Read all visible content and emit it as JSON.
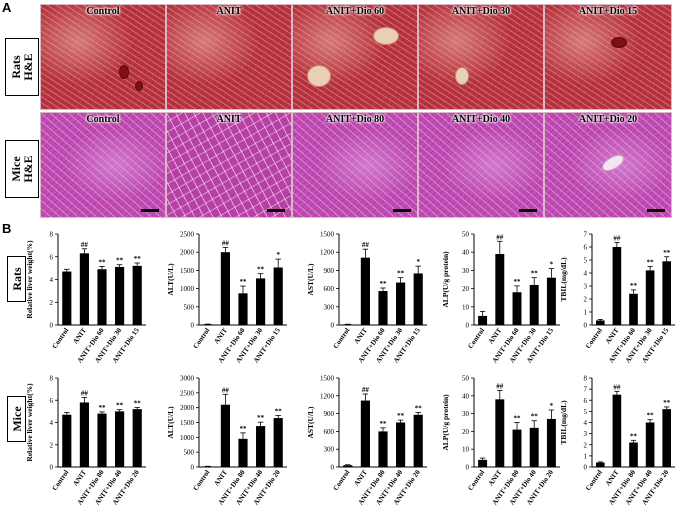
{
  "panels": {
    "a": "A",
    "b": "B"
  },
  "species": {
    "rats": {
      "name": "Rats",
      "stain": "H&E"
    },
    "mice": {
      "name": "Mice",
      "stain": "H&E"
    }
  },
  "micrographs": {
    "rats": [
      "Control",
      "ANIT",
      "ANIT+Dio 60",
      "ANIT+Dio 30",
      "ANIT+Dio 15"
    ],
    "mice": [
      "Control",
      "ANIT",
      "ANIT+Dio 80",
      "ANIT+Dio 40",
      "ANIT+Dio 20"
    ]
  },
  "chart_data": [
    {
      "type": "bar",
      "species": "Rats",
      "ylabel": "Relative liver weight(%)",
      "ylim": [
        0,
        8
      ],
      "yticks": [
        0,
        2,
        4,
        6,
        8
      ],
      "categories": [
        "Control",
        "ANIT",
        "ANIT+Dio 60",
        "ANIT+Dio 30",
        "ANIT+Dio 15"
      ],
      "values": [
        4.7,
        6.3,
        4.9,
        5.1,
        5.2
      ],
      "errors": [
        0.2,
        0.4,
        0.25,
        0.2,
        0.25
      ],
      "marks": [
        "",
        "##",
        "**",
        "**",
        "**"
      ]
    },
    {
      "type": "bar",
      "species": "Rats",
      "ylabel": "ALT(U/L)",
      "ylim": [
        0,
        2500
      ],
      "yticks": [
        0,
        500,
        1000,
        1500,
        2000,
        2500
      ],
      "categories": [
        "Control",
        "ANIT",
        "ANIT+Dio 60",
        "ANIT+Dio 30",
        "ANIT+Dio 15"
      ],
      "values": [
        20,
        2000,
        870,
        1280,
        1580
      ],
      "errors": [
        5,
        130,
        200,
        130,
        230
      ],
      "marks": [
        "",
        "##",
        "**",
        "**",
        "*"
      ]
    },
    {
      "type": "bar",
      "species": "Rats",
      "ylabel": "AST(U/L)",
      "ylim": [
        0,
        1500
      ],
      "yticks": [
        0,
        300,
        600,
        900,
        1200,
        1500
      ],
      "categories": [
        "Control",
        "ANIT",
        "ANIT+Dio 60",
        "ANIT+Dio 30",
        "ANIT+Dio 15"
      ],
      "values": [
        10,
        1110,
        560,
        700,
        850
      ],
      "errors": [
        3,
        140,
        50,
        80,
        120
      ],
      "marks": [
        "",
        "##",
        "**",
        "**",
        "*"
      ]
    },
    {
      "type": "bar",
      "species": "Rats",
      "ylabel": "ALP(U/g protein)",
      "ylim": [
        0,
        50
      ],
      "yticks": [
        0,
        10,
        20,
        30,
        40,
        50
      ],
      "categories": [
        "Control",
        "ANIT",
        "ANIT+Dio 60",
        "ANIT+Dio 30",
        "ANIT+Dio 15"
      ],
      "values": [
        5,
        39,
        18,
        22,
        26
      ],
      "errors": [
        2.5,
        7,
        3.5,
        4,
        5
      ],
      "marks": [
        "",
        "##",
        "**",
        "**",
        "*"
      ]
    },
    {
      "type": "bar",
      "species": "Rats",
      "ylabel": "TBIL(mg/dL)",
      "ylim": [
        0,
        7
      ],
      "yticks": [
        0,
        1,
        2,
        3,
        4,
        5,
        6,
        7
      ],
      "categories": [
        "Control",
        "ANIT",
        "ANIT+Dio 60",
        "ANIT+Dio 30",
        "ANIT+Dio 15"
      ],
      "values": [
        0.35,
        6.0,
        2.4,
        4.2,
        4.9
      ],
      "errors": [
        0.08,
        0.35,
        0.3,
        0.3,
        0.35
      ],
      "marks": [
        "",
        "##",
        "**",
        "**",
        "**"
      ]
    },
    {
      "type": "bar",
      "species": "Mice",
      "ylabel": "Relative liver weight(%)",
      "ylim": [
        0,
        8
      ],
      "yticks": [
        0,
        2,
        4,
        6,
        8
      ],
      "categories": [
        "Control",
        "ANIT",
        "ANIT+Dio 80",
        "ANIT+Dio 40",
        "ANIT+Dio 20"
      ],
      "values": [
        4.7,
        5.8,
        4.8,
        5.0,
        5.2
      ],
      "errors": [
        0.2,
        0.45,
        0.15,
        0.15,
        0.15
      ],
      "marks": [
        "",
        "##",
        "**",
        "**",
        "**"
      ]
    },
    {
      "type": "bar",
      "species": "Mice",
      "ylabel": "ALT(U/L)",
      "ylim": [
        0,
        3000
      ],
      "yticks": [
        0,
        500,
        1000,
        1500,
        2000,
        2500,
        3000
      ],
      "categories": [
        "Control",
        "ANIT",
        "ANIT+Dio 80",
        "ANIT+Dio 40",
        "ANIT+Dio 20"
      ],
      "values": [
        20,
        2100,
        950,
        1380,
        1650
      ],
      "errors": [
        5,
        350,
        200,
        130,
        90
      ],
      "marks": [
        "",
        "##",
        "**",
        "**",
        "**"
      ]
    },
    {
      "type": "bar",
      "species": "Mice",
      "ylabel": "AST(U/L)",
      "ylim": [
        0,
        1500
      ],
      "yticks": [
        0,
        300,
        600,
        900,
        1200,
        1500
      ],
      "categories": [
        "Control",
        "ANIT",
        "ANIT+Dio 80",
        "ANIT+Dio 40",
        "ANIT+Dio 20"
      ],
      "values": [
        30,
        1120,
        600,
        750,
        880
      ],
      "errors": [
        8,
        110,
        60,
        40,
        40
      ],
      "marks": [
        "",
        "##",
        "**",
        "**",
        "**"
      ]
    },
    {
      "type": "bar",
      "species": "Mice",
      "ylabel": "ALP(U/g protein)",
      "ylim": [
        0,
        50
      ],
      "yticks": [
        0,
        10,
        20,
        30,
        40,
        50
      ],
      "categories": [
        "Control",
        "ANIT",
        "ANIT+Dio 80",
        "ANIT+Dio 40",
        "ANIT+Dio 20"
      ],
      "values": [
        4,
        38,
        21,
        22,
        27
      ],
      "errors": [
        1,
        5,
        4,
        4,
        5
      ],
      "marks": [
        "",
        "##",
        "**",
        "**",
        "*"
      ]
    },
    {
      "type": "bar",
      "species": "Mice",
      "ylabel": "TBIL(mg/dL)",
      "ylim": [
        0,
        8
      ],
      "yticks": [
        0,
        1,
        2,
        3,
        4,
        5,
        6,
        7,
        8
      ],
      "categories": [
        "Control",
        "ANIT",
        "ANIT+Dio 80",
        "ANIT+Dio 40",
        "ANIT+Dio 20"
      ],
      "values": [
        0.4,
        6.5,
        2.2,
        4.0,
        5.2
      ],
      "errors": [
        0.06,
        0.3,
        0.2,
        0.25,
        0.2
      ],
      "marks": [
        "",
        "##",
        "**",
        "**",
        "**"
      ]
    }
  ]
}
